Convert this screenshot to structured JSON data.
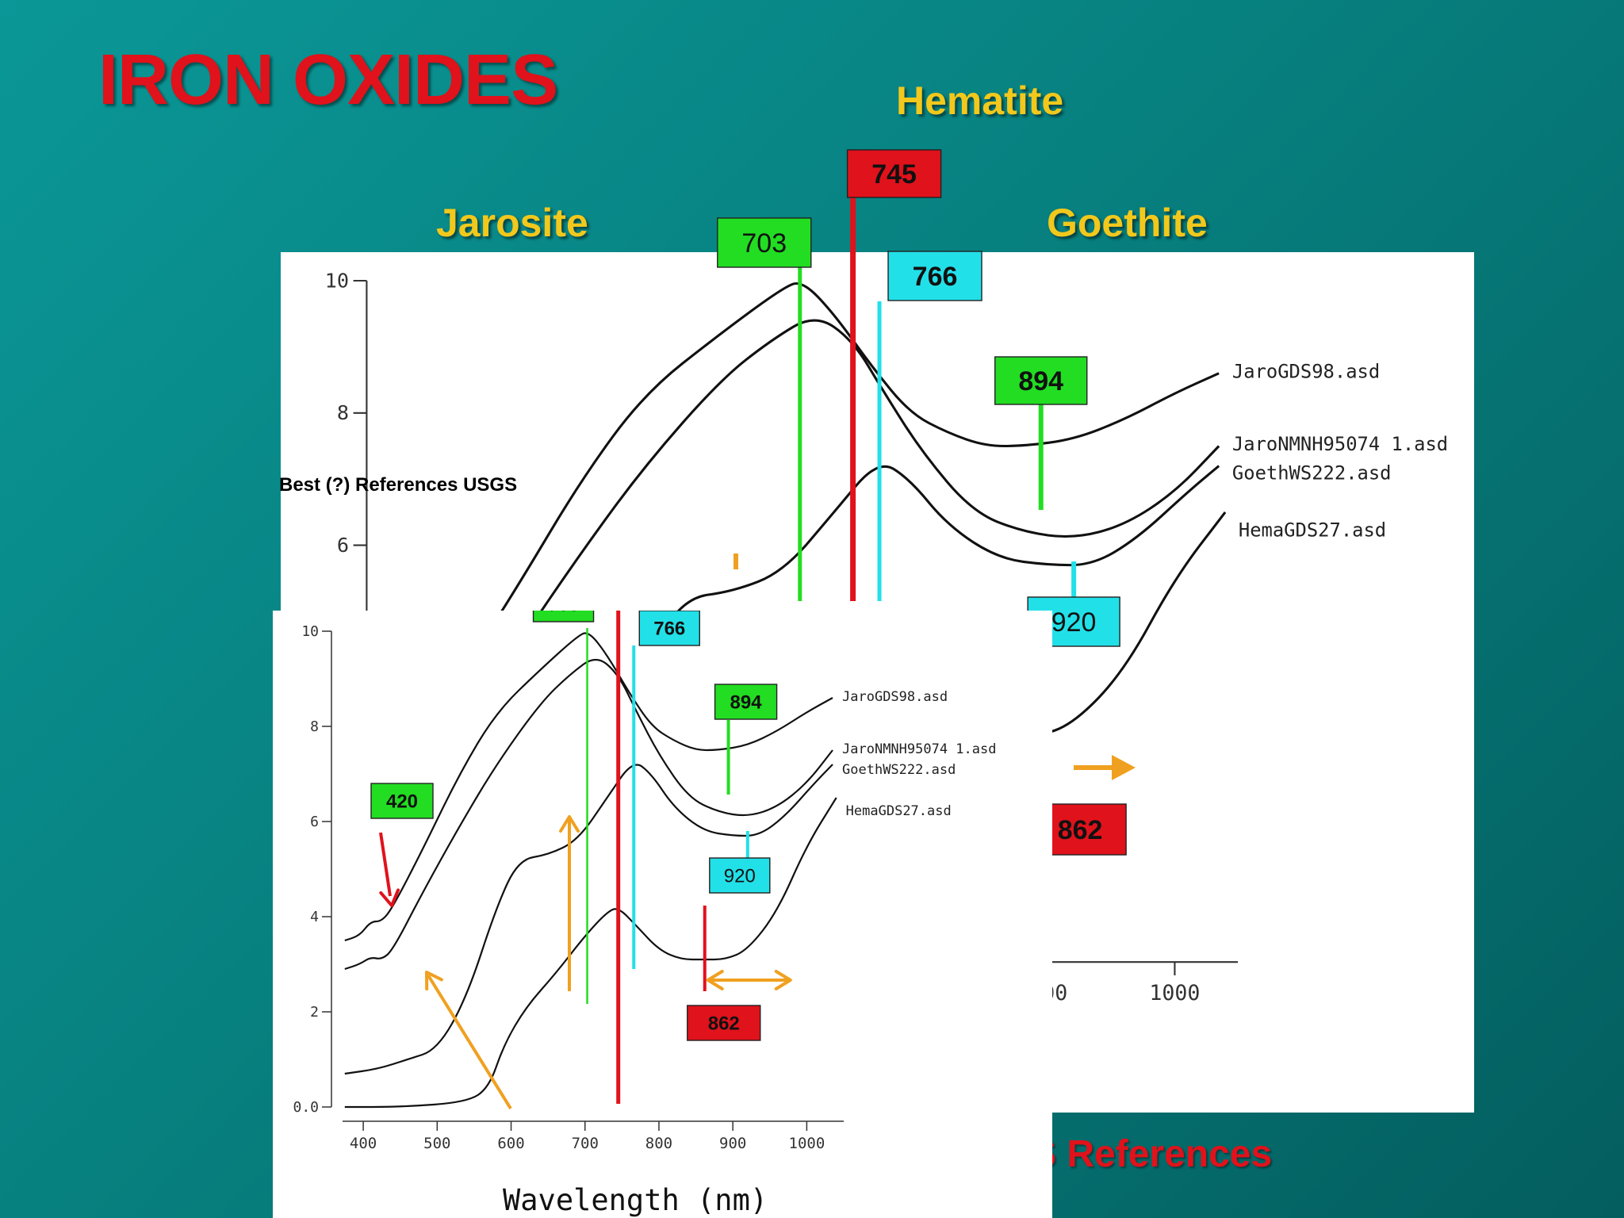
{
  "slide": {
    "title": "IRON OXIDES",
    "minerals": {
      "hematite": "Hematite",
      "jarosite": "Jarosite",
      "goethite": "Goethite"
    },
    "best_references": "Best (?) References  USGS",
    "caption_partial": "S References"
  },
  "chart_data": [
    {
      "type": "line",
      "xlabel": "Wavelength (nm)",
      "xlim": [
        372,
        1050
      ],
      "ylim": [
        0,
        10
      ],
      "yticks": [
        0,
        2,
        4,
        6,
        8,
        10
      ],
      "ytick_labels": [
        "0.0",
        "2",
        "4",
        "6",
        "8",
        "10"
      ],
      "xticks": [
        400,
        500,
        600,
        700,
        800,
        900,
        1000
      ],
      "ytick_side": "left",
      "series": [
        {
          "name": "JaroGDS98.asd",
          "points": [
            [
              375,
              3.5
            ],
            [
              395,
              3.6
            ],
            [
              410,
              3.9
            ],
            [
              425,
              3.9
            ],
            [
              440,
              4.2
            ],
            [
              480,
              5.4
            ],
            [
              530,
              7.0
            ],
            [
              580,
              8.3
            ],
            [
              640,
              9.2
            ],
            [
              690,
              9.9
            ],
            [
              705,
              10.0
            ],
            [
              730,
              9.5
            ],
            [
              760,
              8.7
            ],
            [
              790,
              8.0
            ],
            [
              820,
              7.7
            ],
            [
              850,
              7.5
            ],
            [
              880,
              7.5
            ],
            [
              920,
              7.6
            ],
            [
              960,
              7.9
            ],
            [
              1000,
              8.3
            ],
            [
              1035,
              8.6
            ]
          ]
        },
        {
          "name": "JaroNMNH95074 1.asd",
          "points": [
            [
              375,
              2.9
            ],
            [
              395,
              3.0
            ],
            [
              410,
              3.15
            ],
            [
              425,
              3.1
            ],
            [
              440,
              3.3
            ],
            [
              480,
              4.5
            ],
            [
              530,
              5.9
            ],
            [
              580,
              7.2
            ],
            [
              640,
              8.5
            ],
            [
              680,
              9.1
            ],
            [
              715,
              9.5
            ],
            [
              745,
              9.1
            ],
            [
              770,
              8.3
            ],
            [
              800,
              7.4
            ],
            [
              840,
              6.5
            ],
            [
              880,
              6.2
            ],
            [
              920,
              6.1
            ],
            [
              960,
              6.3
            ],
            [
              1000,
              6.8
            ],
            [
              1035,
              7.5
            ]
          ]
        },
        {
          "name": "GoethWS222.asd",
          "points": [
            [
              375,
              0.7
            ],
            [
              420,
              0.8
            ],
            [
              460,
              1.0
            ],
            [
              500,
              1.2
            ],
            [
              540,
              2.3
            ],
            [
              580,
              4.2
            ],
            [
              610,
              5.2
            ],
            [
              650,
              5.3
            ],
            [
              690,
              5.6
            ],
            [
              730,
              6.5
            ],
            [
              765,
              7.3
            ],
            [
              790,
              7.0
            ],
            [
              820,
              6.3
            ],
            [
              860,
              5.8
            ],
            [
              900,
              5.7
            ],
            [
              935,
              5.7
            ],
            [
              970,
              6.1
            ],
            [
              1010,
              6.8
            ],
            [
              1035,
              7.2
            ]
          ]
        },
        {
          "name": "HemaGDS27.asd",
          "points": [
            [
              375,
              0.0
            ],
            [
              450,
              0.0
            ],
            [
              540,
              0.1
            ],
            [
              570,
              0.4
            ],
            [
              590,
              1.3
            ],
            [
              620,
              2.1
            ],
            [
              660,
              2.8
            ],
            [
              700,
              3.6
            ],
            [
              730,
              4.1
            ],
            [
              745,
              4.2
            ],
            [
              770,
              3.8
            ],
            [
              800,
              3.3
            ],
            [
              830,
              3.1
            ],
            [
              860,
              3.1
            ],
            [
              890,
              3.1
            ],
            [
              920,
              3.3
            ],
            [
              960,
              4.1
            ],
            [
              1000,
              5.5
            ],
            [
              1040,
              6.5
            ]
          ]
        }
      ],
      "markers": [
        {
          "label": "703",
          "wavelength": 703,
          "color": "#22dd22"
        },
        {
          "label": "745",
          "wavelength": 745,
          "color": "#e0121b"
        },
        {
          "label": "766",
          "wavelength": 766,
          "color": "#22e0e8"
        },
        {
          "label": "894",
          "wavelength": 894,
          "color": "#22dd22"
        },
        {
          "label": "920",
          "wavelength": 920,
          "color": "#22e0e8"
        },
        {
          "label": "420",
          "wavelength": 420,
          "color": "#22dd22"
        },
        {
          "label": "862",
          "wavelength": 862,
          "color": "#e0121b"
        }
      ]
    }
  ],
  "colors": {
    "jarosite_green": "#22dd22",
    "hematite_red": "#e0121b",
    "goethite_cyan": "#22e0e8",
    "arrow_orange": "#f0a020"
  }
}
